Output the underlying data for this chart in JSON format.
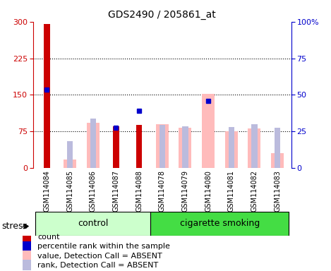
{
  "title": "GDS2490 / 205861_at",
  "samples": [
    "GSM114084",
    "GSM114085",
    "GSM114086",
    "GSM114087",
    "GSM114088",
    "GSM114078",
    "GSM114079",
    "GSM114080",
    "GSM114081",
    "GSM114082",
    "GSM114083"
  ],
  "count_values": [
    295,
    null,
    null,
    85,
    88,
    null,
    null,
    null,
    null,
    null,
    null
  ],
  "percentile_rank_values": [
    160,
    null,
    null,
    82,
    118,
    null,
    null,
    138,
    null,
    null,
    null
  ],
  "value_absent": [
    null,
    18,
    92,
    null,
    null,
    90,
    83,
    152,
    76,
    81,
    30
  ],
  "rank_absent": [
    null,
    55,
    102,
    null,
    null,
    88,
    85,
    null,
    84,
    90,
    82
  ],
  "left_ylim": [
    0,
    300
  ],
  "left_yticks": [
    0,
    75,
    150,
    225,
    300
  ],
  "right_ylim": [
    0,
    100
  ],
  "right_yticks": [
    0,
    25,
    50,
    75,
    100
  ],
  "right_yticklabels": [
    "0",
    "25",
    "50",
    "75",
    "100%"
  ],
  "color_count": "#cc0000",
  "color_percentile": "#0000cc",
  "color_value_absent": "#ffbbbb",
  "color_rank_absent": "#bbbbdd",
  "control_color_light": "#ccffcc",
  "smoking_color_bright": "#44dd44",
  "xlabel_bg": "#cccccc",
  "legend_items": [
    "count",
    "percentile rank within the sample",
    "value, Detection Call = ABSENT",
    "rank, Detection Call = ABSENT"
  ],
  "legend_colors": [
    "#cc0000",
    "#0000cc",
    "#ffbbbb",
    "#bbbbdd"
  ],
  "n_control": 5,
  "n_smoking": 6
}
